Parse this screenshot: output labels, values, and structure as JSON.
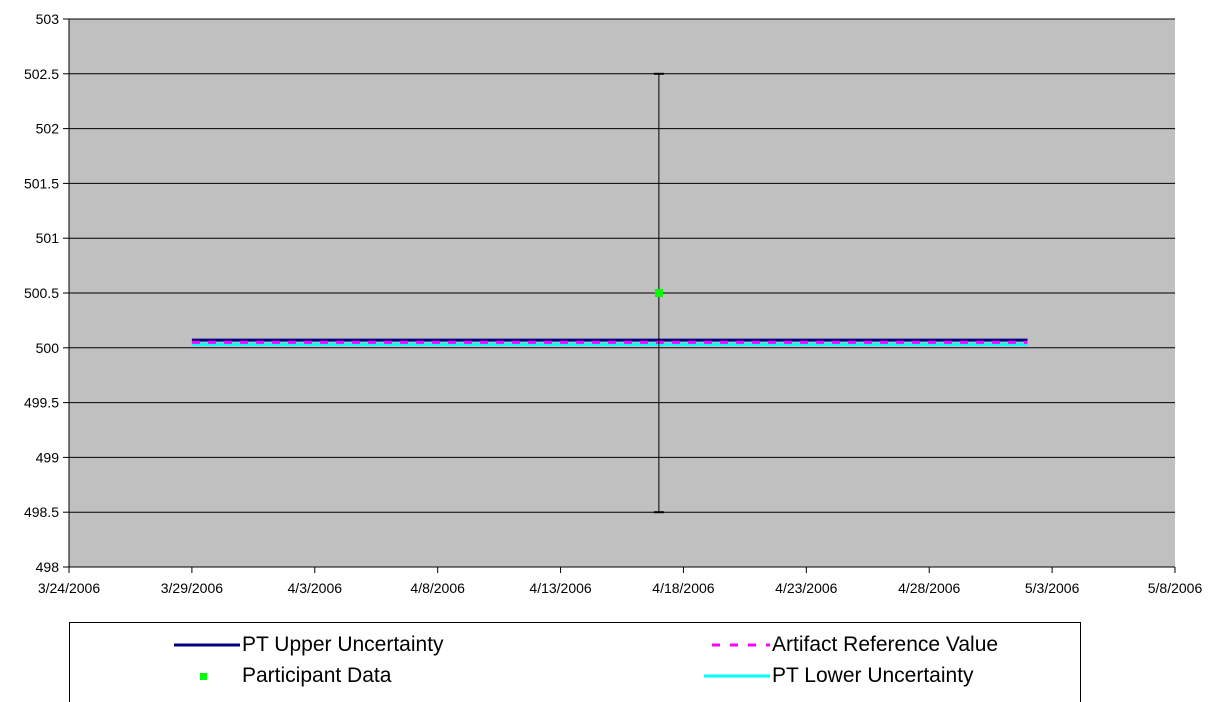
{
  "chart_data": {
    "type": "line",
    "x_axis": {
      "type": "date",
      "min": "2006-03-24",
      "max": "2006-05-08",
      "ticks": [
        "2006-03-24",
        "2006-03-29",
        "2006-04-03",
        "2006-04-08",
        "2006-04-13",
        "2006-04-18",
        "2006-04-23",
        "2006-04-28",
        "2006-05-03",
        "2006-05-08"
      ],
      "tick_labels": [
        "3/24/2006",
        "3/29/2006",
        "4/3/2006",
        "4/8/2006",
        "4/13/2006",
        "4/18/2006",
        "4/23/2006",
        "4/28/2006",
        "5/3/2006",
        "5/8/2006"
      ]
    },
    "y_axis": {
      "min": 498,
      "max": 503,
      "ticks": [
        498,
        498.5,
        499,
        499.5,
        500,
        500.5,
        501,
        501.5,
        502,
        502.5,
        503
      ],
      "tick_labels": [
        "498",
        "498.5",
        "499",
        "499.5",
        "500",
        "500.5",
        "501",
        "501.5",
        "502",
        "502.5",
        "503"
      ]
    },
    "grid": "horizontal",
    "plot_background": "#c0c0c0",
    "legend_position": "bottom",
    "series": [
      {
        "name": "PT Upper Uncertainty",
        "style": "solid",
        "color": "#000080",
        "points": [
          {
            "x": "2006-03-29",
            "y": 500.07
          },
          {
            "x": "2006-05-02",
            "y": 500.07
          }
        ]
      },
      {
        "name": "Artifact Reference Value",
        "style": "dashed",
        "color": "#ff00ff",
        "points": [
          {
            "x": "2006-03-29",
            "y": 500.05
          },
          {
            "x": "2006-05-02",
            "y": 500.05
          }
        ]
      },
      {
        "name": "Participant Data",
        "style": "marker",
        "color": "#00ff00",
        "points": [
          {
            "x": "2006-04-17",
            "y": 500.5,
            "error_low": 498.5,
            "error_high": 502.5
          }
        ]
      },
      {
        "name": "PT Lower Uncertainty",
        "style": "solid",
        "color": "#00ffff",
        "points": [
          {
            "x": "2006-03-29",
            "y": 500.03
          },
          {
            "x": "2006-05-02",
            "y": 500.03
          }
        ]
      }
    ]
  }
}
